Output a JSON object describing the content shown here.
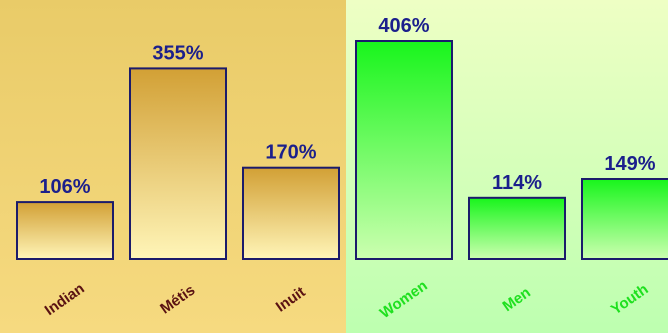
{
  "chart_data": [
    {
      "type": "bar",
      "panel": "left",
      "categories": [
        "Indian",
        "Métis",
        "Inuit"
      ],
      "values": [
        106,
        355,
        170
      ],
      "data_labels": [
        "106%",
        "355%",
        "170%"
      ],
      "ylim": [
        0,
        450
      ],
      "grid": false,
      "legend": "none",
      "colors": {
        "background_top": "#E9CB68",
        "background_bottom": "#F6DA80",
        "bar_top": "#D2A035",
        "bar_bottom": "#FFF5B8",
        "bar_stroke": "#1B1B6B",
        "value_label": "#1B1F8C",
        "category_label": "#5A1212"
      }
    },
    {
      "type": "bar",
      "panel": "right",
      "categories": [
        "Women",
        "Men",
        "Youth"
      ],
      "values": [
        406,
        114,
        149
      ],
      "data_labels": [
        "406%",
        "114%",
        "149%"
      ],
      "ylim": [
        0,
        450
      ],
      "grid": false,
      "legend": "none",
      "colors": {
        "background_top": "#EEFFC4",
        "background_bottom": "#BDFFB0",
        "bar_top": "#18F51C",
        "bar_bottom": "#CCFFB0",
        "bar_stroke": "#1B1B6B",
        "value_label": "#1B1F8C",
        "category_label": "#1FE01F"
      }
    }
  ]
}
